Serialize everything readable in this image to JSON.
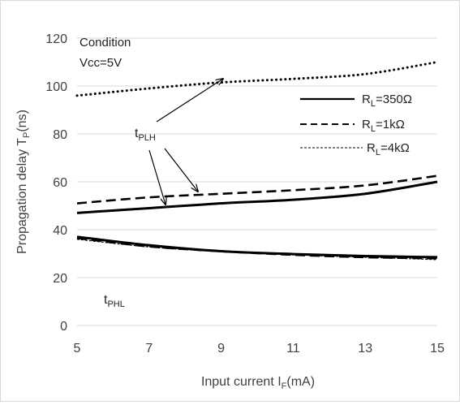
{
  "chart_data": {
    "type": "line",
    "xlabel": {
      "main": "Input current I",
      "sub": "F",
      "tail": "(mA)"
    },
    "ylabel": {
      "main": "Propagation delay  T",
      "sub": "P",
      "tail": "(ns)"
    },
    "xlim": [
      5,
      15
    ],
    "ylim": [
      0,
      120
    ],
    "xticks": [
      "5",
      "7",
      "9",
      "11",
      "13",
      "15"
    ],
    "yticks": [
      "0",
      "20",
      "40",
      "60",
      "80",
      "100",
      "120"
    ],
    "grid": {
      "horizontal": true,
      "vertical": false
    },
    "condition": [
      "Condition",
      "Vcc=5V"
    ],
    "legend": {
      "placement": "top-right",
      "entries": [
        {
          "pre": "R",
          "sub": "L",
          "post": "=350Ω",
          "style": "solid"
        },
        {
          "pre": "R",
          "sub": "L",
          "post": "=1kΩ",
          "style": "dashed"
        },
        {
          "pre": "R",
          "sub": "L",
          "post": "=4kΩ",
          "style": "dotted-thin"
        }
      ]
    },
    "annotations": {
      "tplh": {
        "base": "t",
        "sub": "PLH"
      },
      "tphl": {
        "base": "t",
        "sub": "PHL"
      }
    },
    "series": [
      {
        "id": "tplh_350",
        "style": "solid",
        "x": [
          5,
          7,
          9,
          11,
          13,
          15
        ],
        "y": [
          47,
          49,
          51,
          52.5,
          55,
          60
        ]
      },
      {
        "id": "tplh_1k",
        "style": "dashed",
        "x": [
          5,
          7,
          9,
          11,
          13,
          15
        ],
        "y": [
          51,
          53.5,
          55,
          56.5,
          58.5,
          62.5
        ]
      },
      {
        "id": "tplh_4k",
        "style": "dotted",
        "x": [
          5,
          7,
          9,
          11,
          13,
          15
        ],
        "y": [
          96,
          99,
          101.5,
          103,
          105,
          110
        ]
      },
      {
        "id": "tphl_350",
        "style": "solid",
        "x": [
          5,
          7,
          9,
          11,
          13,
          15
        ],
        "y": [
          37,
          33.5,
          31,
          29.8,
          29,
          28.5
        ]
      },
      {
        "id": "tphl_1k",
        "style": "dashed",
        "x": [
          5,
          7,
          9,
          11,
          13,
          15
        ],
        "y": [
          36.5,
          33,
          31,
          29.5,
          28.5,
          28
        ]
      },
      {
        "id": "tphl_4k",
        "style": "dotted-thin",
        "x": [
          5,
          7,
          9,
          11,
          13,
          15
        ],
        "y": [
          36,
          32.8,
          30.8,
          29.5,
          28.5,
          27.5
        ]
      }
    ],
    "colors": {
      "line": "#000000",
      "grid": "#d9d9d9",
      "text": "#404040"
    }
  }
}
